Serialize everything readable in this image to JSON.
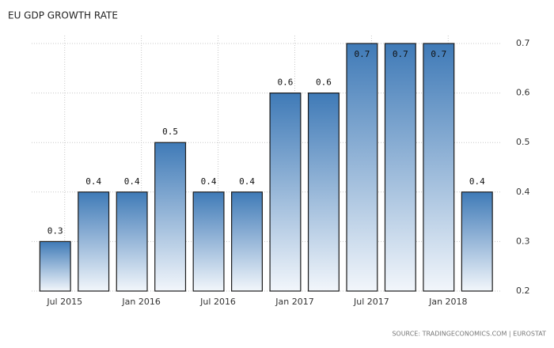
{
  "chart_data": {
    "type": "bar",
    "title": "EU GDP GROWTH RATE",
    "source": "SOURCE: TRADINGECONOMICS.COM | EUROSTAT",
    "categories": [
      "Jul 2015",
      null,
      "Jan 2016",
      null,
      "Jul 2016",
      null,
      "Jan 2017",
      null,
      "Jul 2017",
      null,
      "Jan 2018",
      null
    ],
    "values": [
      0.3,
      0.4,
      0.4,
      0.5,
      0.4,
      0.4,
      0.6,
      0.6,
      0.7,
      0.7,
      0.7,
      0.4
    ],
    "color": "#3f7ab7",
    "ylim": [
      0.2,
      0.7
    ],
    "yticks": [
      0.2,
      0.3,
      0.4,
      0.5,
      0.6,
      0.7
    ],
    "grid": true
  }
}
